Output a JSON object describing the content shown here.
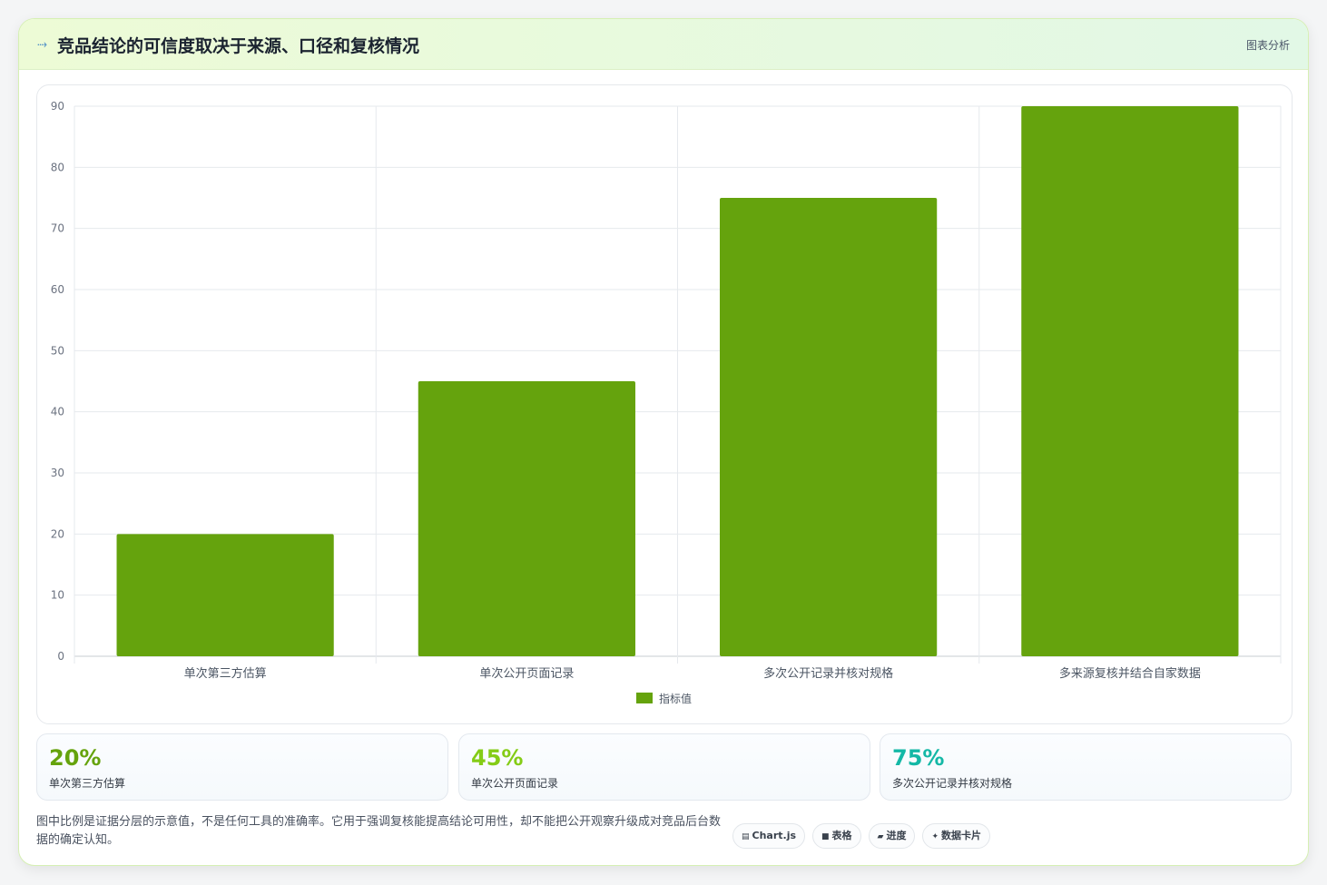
{
  "header": {
    "icon": "trend-arrow-icon",
    "title": "竞品结论的可信度取决于来源、口径和复核情况",
    "tag": "图表分析"
  },
  "chart_data": {
    "type": "bar",
    "categories": [
      "单次第三方估算",
      "单次公开页面记录",
      "多次公开记录并核对规格",
      "多来源复核并结合自家数据"
    ],
    "series": [
      {
        "name": "指标值",
        "values": [
          20,
          45,
          75,
          90
        ],
        "color": "#65a30d"
      }
    ],
    "ylim": [
      0,
      90
    ],
    "yticks": [
      0,
      10,
      20,
      30,
      40,
      50,
      60,
      70,
      80,
      90
    ],
    "grid": true,
    "legend": "bottom"
  },
  "stats": [
    {
      "value": "20%",
      "label": "单次第三方估算",
      "color": "#65a30d"
    },
    {
      "value": "45%",
      "label": "单次公开页面记录",
      "color": "#84cc16"
    },
    {
      "value": "75%",
      "label": "多次公开记录并核对规格",
      "color": "#14b8a6"
    }
  ],
  "note": "图中比例是证据分层的示意值，不是任何工具的准确率。它用于强调复核能提高结论可用性，却不能把公开观察升级成对竞品后台数据的确定认知。",
  "tags": [
    {
      "icon": "▤",
      "icon_name": "chart-icon",
      "label": "Chart.js"
    },
    {
      "icon": "■",
      "icon_name": "table-icon",
      "label": "表格"
    },
    {
      "icon": "▰",
      "icon_name": "progress-icon",
      "label": "进度"
    },
    {
      "icon": "✦",
      "icon_name": "sparkle-icon",
      "label": "数据卡片"
    }
  ]
}
